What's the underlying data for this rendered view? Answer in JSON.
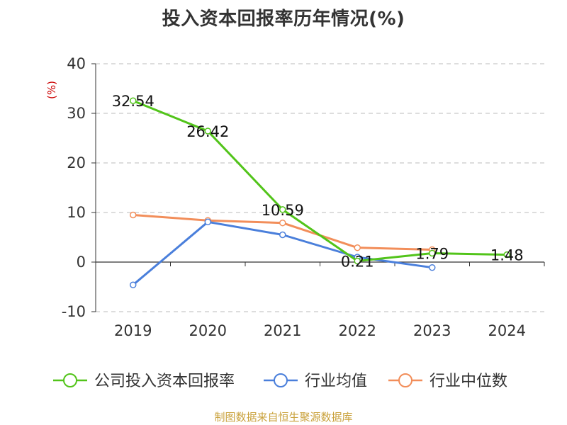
{
  "title": "投入资本回报率历年情况(%)",
  "source": "制图数据来自恒生聚源数据库",
  "chart_data": {
    "type": "line",
    "title": "投入资本回报率历年情况(%)",
    "xlabel": "",
    "ylabel": "(%)",
    "categories": [
      "2019",
      "2020",
      "2021",
      "2022",
      "2023",
      "2024"
    ],
    "ylim": [
      -10,
      40
    ],
    "yticks": [
      -10,
      0,
      10,
      20,
      30,
      40
    ],
    "grid": true,
    "legend_position": "bottom",
    "series": [
      {
        "name": "公司投入资本回报率",
        "color": "#52c41a",
        "values": [
          32.54,
          26.42,
          10.59,
          0.21,
          1.79,
          1.48
        ],
        "labels": [
          "32.54",
          "26.42",
          "10.59",
          "0.21",
          "1.79",
          "1.48"
        ]
      },
      {
        "name": "行业均值",
        "color": "#4a7fdb",
        "values": [
          -4.6,
          8.1,
          5.5,
          1.0,
          -1.1,
          null
        ],
        "labels": []
      },
      {
        "name": "行业中位数",
        "color": "#f28e5a",
        "values": [
          9.5,
          8.4,
          7.9,
          2.9,
          2.5,
          null
        ],
        "labels": []
      }
    ]
  }
}
